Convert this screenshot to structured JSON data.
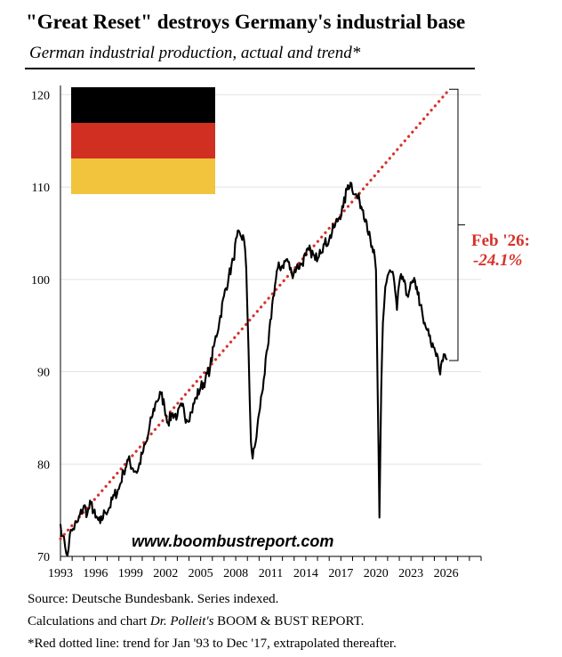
{
  "header": {
    "title": "\"Great Reset\" destroys Germany's industrial base",
    "subtitle": "German industrial production, actual and trend*"
  },
  "chart_data": {
    "type": "line",
    "title": "\"Great Reset\" destroys Germany's industrial base",
    "subtitle": "German industrial production, actual and trend*",
    "xlabel": "",
    "ylabel": "",
    "xlim": [
      1993,
      2029
    ],
    "ylim": [
      70,
      121
    ],
    "x_ticks": [
      "1993",
      "1996",
      "1999",
      "2002",
      "2005",
      "2008",
      "2011",
      "2014",
      "2017",
      "2020",
      "2023",
      "2026"
    ],
    "y_ticks": [
      "70",
      "80",
      "90",
      "100",
      "110",
      "120"
    ],
    "grid": "horizontal",
    "series": [
      {
        "name": "Industrial production (actual)",
        "color": "#000000",
        "style": "solid",
        "points": [
          [
            1993.0,
            73.5
          ],
          [
            1993.2,
            72.2
          ],
          [
            1993.4,
            71.0
          ],
          [
            1993.6,
            70.1
          ],
          [
            1993.8,
            72.4
          ],
          [
            1994.0,
            72.8
          ],
          [
            1994.5,
            73.8
          ],
          [
            1995.0,
            75.5
          ],
          [
            1995.3,
            74.6
          ],
          [
            1995.6,
            75.8
          ],
          [
            1996.0,
            74.2
          ],
          [
            1996.4,
            73.6
          ],
          [
            1996.8,
            74.8
          ],
          [
            1997.2,
            75.3
          ],
          [
            1997.6,
            76.6
          ],
          [
            1998.0,
            77.3
          ],
          [
            1998.4,
            79.2
          ],
          [
            1998.8,
            80.5
          ],
          [
            1999.2,
            79.5
          ],
          [
            1999.6,
            79.2
          ],
          [
            2000.0,
            81.1
          ],
          [
            2000.4,
            82.5
          ],
          [
            2000.8,
            85.0
          ],
          [
            2001.2,
            86.8
          ],
          [
            2001.6,
            87.6
          ],
          [
            2001.9,
            86.3
          ],
          [
            2002.2,
            84.5
          ],
          [
            2002.6,
            85.5
          ],
          [
            2003.0,
            85.2
          ],
          [
            2003.4,
            86.3
          ],
          [
            2003.8,
            84.8
          ],
          [
            2004.2,
            85.6
          ],
          [
            2004.6,
            87.2
          ],
          [
            2005.0,
            88.3
          ],
          [
            2005.4,
            89.1
          ],
          [
            2005.8,
            90.4
          ],
          [
            2006.2,
            93.2
          ],
          [
            2006.6,
            95.4
          ],
          [
            2007.0,
            98.2
          ],
          [
            2007.4,
            100.3
          ],
          [
            2007.8,
            102.1
          ],
          [
            2008.1,
            104.6
          ],
          [
            2008.4,
            104.8
          ],
          [
            2008.7,
            104.4
          ],
          [
            2008.9,
            101.2
          ],
          [
            2009.1,
            92.4
          ],
          [
            2009.3,
            82.4
          ],
          [
            2009.45,
            80.6
          ],
          [
            2009.7,
            82.3
          ],
          [
            2010.0,
            85.5
          ],
          [
            2010.4,
            89.2
          ],
          [
            2010.8,
            93.1
          ],
          [
            2011.2,
            98.1
          ],
          [
            2011.6,
            101.2
          ],
          [
            2012.0,
            101.5
          ],
          [
            2012.4,
            102.2
          ],
          [
            2012.8,
            100.6
          ],
          [
            2013.2,
            101.3
          ],
          [
            2013.6,
            101.6
          ],
          [
            2014.0,
            102.6
          ],
          [
            2014.4,
            103.2
          ],
          [
            2014.8,
            102.1
          ],
          [
            2015.2,
            103.2
          ],
          [
            2015.6,
            103.8
          ],
          [
            2016.0,
            104.3
          ],
          [
            2016.4,
            105.6
          ],
          [
            2016.8,
            106.6
          ],
          [
            2017.2,
            107.8
          ],
          [
            2017.6,
            110.2
          ],
          [
            2017.9,
            110.4
          ],
          [
            2018.2,
            109.2
          ],
          [
            2018.6,
            108.5
          ],
          [
            2018.9,
            107.5
          ],
          [
            2019.2,
            106.3
          ],
          [
            2019.6,
            103.5
          ],
          [
            2019.9,
            102.5
          ],
          [
            2020.0,
            101.0
          ],
          [
            2020.15,
            88.0
          ],
          [
            2020.3,
            74.2
          ],
          [
            2020.45,
            88.0
          ],
          [
            2020.6,
            95.3
          ],
          [
            2020.8,
            99.2
          ],
          [
            2021.0,
            100.4
          ],
          [
            2021.2,
            101.0
          ],
          [
            2021.5,
            100.4
          ],
          [
            2021.8,
            96.7
          ],
          [
            2022.0,
            99.6
          ],
          [
            2022.3,
            100.3
          ],
          [
            2022.6,
            98.3
          ],
          [
            2022.9,
            99.0
          ],
          [
            2023.2,
            99.7
          ],
          [
            2023.5,
            99.2
          ],
          [
            2023.8,
            97.2
          ],
          [
            2024.1,
            95.2
          ],
          [
            2024.4,
            94.5
          ],
          [
            2024.7,
            93.1
          ],
          [
            2025.0,
            92.6
          ],
          [
            2025.3,
            91.6
          ],
          [
            2025.5,
            89.7
          ],
          [
            2025.8,
            91.9
          ],
          [
            2026.0,
            91.4
          ],
          [
            2026.1,
            91.3
          ]
        ]
      },
      {
        "name": "Trend Jan '93 to Dec '17, extrapolated",
        "color": "#d6322b",
        "style": "dotted",
        "points": [
          [
            1993.0,
            71.9
          ],
          [
            2026.1,
            120.3
          ]
        ]
      }
    ],
    "annotations": [
      {
        "text": "Feb '26:",
        "color": "#d6322b"
      },
      {
        "text": "-24.1%",
        "color": "#d6322b"
      },
      {
        "text": "www.boombustreport.com",
        "color": "#000000"
      }
    ],
    "bracket": {
      "from": 120.3,
      "to": 91.5
    }
  },
  "flag": {
    "name": "German flag",
    "colors": [
      "#000000",
      "#d12f22",
      "#f2c33c"
    ]
  },
  "footer": {
    "source": "Source: Deutsche Bundesbank. Series indexed.",
    "calc_prefix": "Calculations and chart ",
    "calc_author": "Dr. Polleit's",
    "calc_suffix": " BOOM & BUST REPORT.",
    "note": "*Red dotted line: trend for Jan '93 to Dec '17, extrapolated thereafter."
  }
}
